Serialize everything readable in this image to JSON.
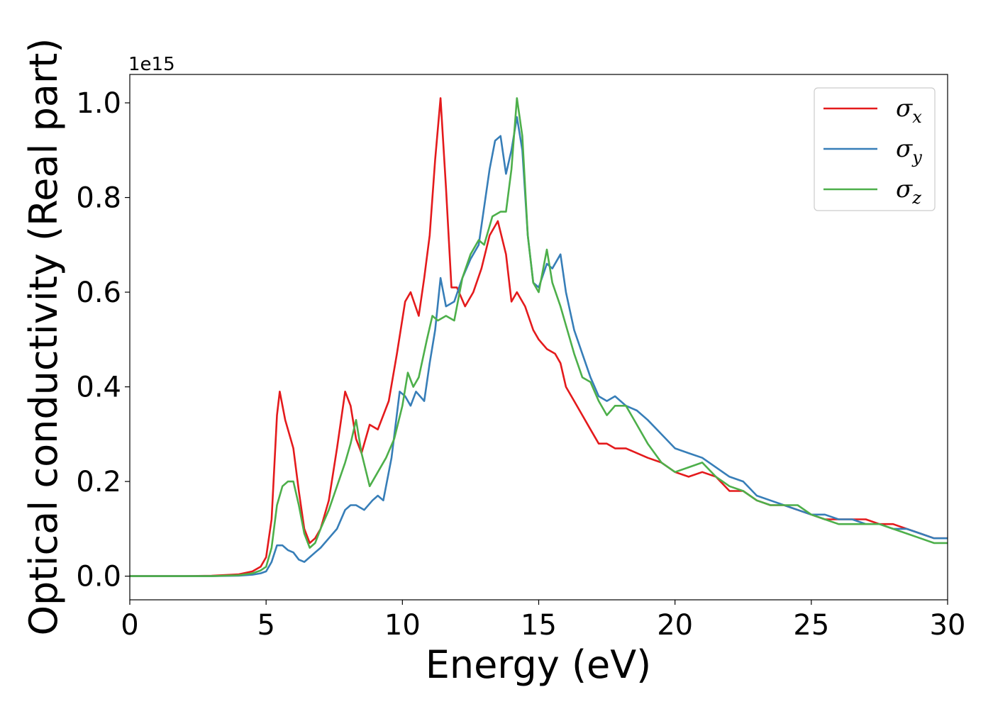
{
  "chart_data": {
    "type": "line",
    "xlabel": "Energy (eV)",
    "ylabel": "Optical conductivity (Real part)",
    "y_offset_text": "1e15",
    "xlim": [
      0,
      30
    ],
    "ylim": [
      -0.05,
      1.06
    ],
    "x_ticks": [
      0,
      5,
      10,
      15,
      20,
      25,
      30
    ],
    "x_tick_labels": [
      "0",
      "5",
      "10",
      "15",
      "20",
      "25",
      "30"
    ],
    "y_ticks": [
      0.0,
      0.2,
      0.4,
      0.6,
      0.8,
      1.0
    ],
    "y_tick_labels": [
      "0.0",
      "0.2",
      "0.4",
      "0.6",
      "0.8",
      "1.0"
    ],
    "grid": false,
    "legend_position": "top-right",
    "series": [
      {
        "name": "σx",
        "legend_symbol": "σ",
        "legend_subscript": "x",
        "color": "#e41a1c",
        "x": [
          0,
          2,
          3,
          4,
          4.5,
          4.8,
          5.0,
          5.2,
          5.4,
          5.5,
          5.7,
          5.9,
          6.0,
          6.2,
          6.4,
          6.6,
          6.8,
          7.0,
          7.3,
          7.6,
          7.9,
          8.1,
          8.3,
          8.5,
          8.8,
          9.1,
          9.5,
          9.8,
          10.1,
          10.3,
          10.6,
          10.8,
          11.0,
          11.2,
          11.4,
          11.6,
          11.8,
          12.0,
          12.3,
          12.6,
          12.9,
          13.2,
          13.5,
          13.8,
          14.0,
          14.2,
          14.5,
          14.8,
          15.0,
          15.3,
          15.6,
          15.8,
          16.0,
          16.3,
          16.6,
          16.9,
          17.2,
          17.5,
          17.8,
          18.2,
          18.6,
          19.0,
          19.5,
          20.0,
          20.5,
          21.0,
          21.5,
          22.0,
          22.5,
          23.0,
          23.5,
          24.0,
          24.5,
          25.0,
          25.5,
          26.0,
          26.5,
          27.0,
          27.5,
          28.0,
          28.5,
          29.0,
          29.5,
          30.0
        ],
        "values": [
          0.0,
          0.0,
          0.001,
          0.004,
          0.01,
          0.02,
          0.04,
          0.12,
          0.34,
          0.39,
          0.33,
          0.29,
          0.27,
          0.18,
          0.1,
          0.07,
          0.08,
          0.1,
          0.16,
          0.27,
          0.39,
          0.36,
          0.29,
          0.26,
          0.32,
          0.31,
          0.37,
          0.47,
          0.58,
          0.6,
          0.55,
          0.63,
          0.72,
          0.88,
          1.01,
          0.82,
          0.61,
          0.61,
          0.57,
          0.6,
          0.65,
          0.72,
          0.75,
          0.68,
          0.58,
          0.6,
          0.57,
          0.52,
          0.5,
          0.48,
          0.47,
          0.45,
          0.4,
          0.37,
          0.34,
          0.31,
          0.28,
          0.28,
          0.27,
          0.27,
          0.26,
          0.25,
          0.24,
          0.22,
          0.21,
          0.22,
          0.21,
          0.18,
          0.18,
          0.16,
          0.15,
          0.15,
          0.14,
          0.13,
          0.12,
          0.12,
          0.12,
          0.12,
          0.11,
          0.11,
          0.1,
          0.09,
          0.08,
          0.08
        ]
      },
      {
        "name": "σy",
        "legend_symbol": "σ",
        "legend_subscript": "y",
        "color": "#377eb8",
        "x": [
          0,
          2,
          3,
          4,
          4.5,
          4.8,
          5.0,
          5.2,
          5.4,
          5.6,
          5.8,
          6.0,
          6.2,
          6.4,
          6.6,
          6.8,
          7.0,
          7.3,
          7.6,
          7.9,
          8.1,
          8.3,
          8.6,
          8.9,
          9.1,
          9.3,
          9.6,
          9.9,
          10.1,
          10.3,
          10.5,
          10.8,
          11.0,
          11.2,
          11.4,
          11.6,
          11.9,
          12.2,
          12.5,
          12.8,
          13.0,
          13.2,
          13.4,
          13.6,
          13.8,
          14.0,
          14.2,
          14.4,
          14.6,
          14.8,
          15.0,
          15.3,
          15.5,
          15.8,
          16.0,
          16.3,
          16.6,
          16.9,
          17.2,
          17.5,
          17.8,
          18.2,
          18.6,
          19.0,
          19.5,
          20.0,
          20.5,
          21.0,
          21.5,
          22.0,
          22.5,
          23.0,
          23.5,
          24.0,
          24.5,
          25.0,
          25.5,
          26.0,
          26.5,
          27.0,
          27.5,
          28.0,
          28.5,
          29.0,
          29.5,
          30.0
        ],
        "values": [
          0.0,
          0.0,
          0.0,
          0.001,
          0.003,
          0.006,
          0.01,
          0.03,
          0.065,
          0.065,
          0.055,
          0.05,
          0.035,
          0.03,
          0.04,
          0.05,
          0.06,
          0.08,
          0.1,
          0.14,
          0.15,
          0.15,
          0.14,
          0.16,
          0.17,
          0.16,
          0.25,
          0.39,
          0.38,
          0.36,
          0.39,
          0.37,
          0.45,
          0.52,
          0.63,
          0.57,
          0.58,
          0.63,
          0.67,
          0.7,
          0.78,
          0.86,
          0.92,
          0.93,
          0.85,
          0.9,
          0.97,
          0.9,
          0.72,
          0.62,
          0.61,
          0.66,
          0.65,
          0.68,
          0.6,
          0.52,
          0.47,
          0.42,
          0.38,
          0.37,
          0.38,
          0.36,
          0.35,
          0.33,
          0.3,
          0.27,
          0.26,
          0.25,
          0.23,
          0.21,
          0.2,
          0.17,
          0.16,
          0.15,
          0.14,
          0.13,
          0.13,
          0.12,
          0.12,
          0.11,
          0.11,
          0.1,
          0.1,
          0.09,
          0.08,
          0.08
        ]
      },
      {
        "name": "σz",
        "legend_symbol": "σ",
        "legend_subscript": "z",
        "color": "#4daf4a",
        "x": [
          0,
          2,
          3,
          4,
          4.5,
          4.8,
          5.0,
          5.2,
          5.4,
          5.6,
          5.8,
          6.0,
          6.2,
          6.4,
          6.6,
          6.8,
          7.0,
          7.3,
          7.6,
          7.9,
          8.1,
          8.3,
          8.5,
          8.8,
          9.1,
          9.4,
          9.7,
          10.0,
          10.2,
          10.4,
          10.6,
          10.9,
          11.1,
          11.3,
          11.6,
          11.9,
          12.2,
          12.5,
          12.8,
          13.0,
          13.3,
          13.6,
          13.8,
          14.0,
          14.2,
          14.4,
          14.6,
          14.8,
          15.0,
          15.3,
          15.5,
          15.8,
          16.0,
          16.3,
          16.6,
          16.9,
          17.2,
          17.5,
          17.8,
          18.2,
          18.6,
          19.0,
          19.5,
          20.0,
          20.5,
          21.0,
          21.5,
          22.0,
          22.5,
          23.0,
          23.5,
          24.0,
          24.5,
          25.0,
          25.5,
          26.0,
          26.5,
          27.0,
          27.5,
          28.0,
          28.5,
          29.0,
          29.5,
          30.0
        ],
        "values": [
          0.0,
          0.0,
          0.0,
          0.002,
          0.006,
          0.012,
          0.02,
          0.06,
          0.15,
          0.19,
          0.2,
          0.2,
          0.15,
          0.09,
          0.06,
          0.07,
          0.1,
          0.14,
          0.19,
          0.24,
          0.28,
          0.33,
          0.26,
          0.19,
          0.22,
          0.25,
          0.29,
          0.36,
          0.43,
          0.4,
          0.42,
          0.5,
          0.55,
          0.54,
          0.55,
          0.54,
          0.63,
          0.68,
          0.71,
          0.7,
          0.76,
          0.77,
          0.77,
          0.86,
          1.01,
          0.93,
          0.72,
          0.62,
          0.6,
          0.69,
          0.62,
          0.57,
          0.53,
          0.47,
          0.42,
          0.41,
          0.37,
          0.34,
          0.36,
          0.36,
          0.32,
          0.28,
          0.24,
          0.22,
          0.23,
          0.24,
          0.21,
          0.19,
          0.18,
          0.16,
          0.15,
          0.15,
          0.15,
          0.13,
          0.12,
          0.11,
          0.11,
          0.11,
          0.11,
          0.1,
          0.09,
          0.08,
          0.07,
          0.07
        ]
      }
    ]
  }
}
